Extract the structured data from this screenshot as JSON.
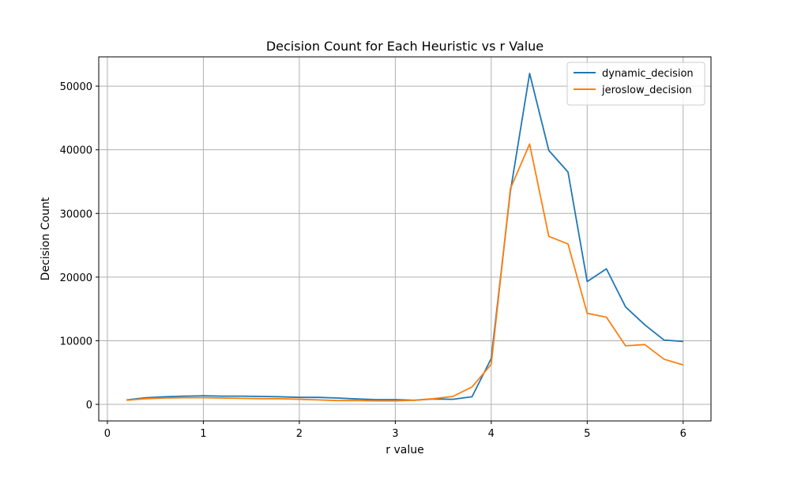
{
  "chart_data": {
    "type": "line",
    "title": "Decision Count for Each Heuristic vs r Value",
    "xlabel": "r value",
    "ylabel": "Decision Count",
    "xlim": [
      -0.09,
      6.29
    ],
    "ylim": [
      -2600,
      54600
    ],
    "x_ticks": [
      0,
      1,
      2,
      3,
      4,
      5,
      6
    ],
    "y_ticks": [
      0,
      10000,
      20000,
      30000,
      40000,
      50000
    ],
    "x_tick_labels": [
      "0",
      "1",
      "2",
      "3",
      "4",
      "5",
      "6"
    ],
    "y_tick_labels": [
      "0",
      "10000",
      "20000",
      "30000",
      "40000",
      "50000"
    ],
    "grid": true,
    "legend_position": "top-right",
    "x": [
      0.2,
      0.4,
      0.6,
      0.8,
      1.0,
      1.2,
      1.4,
      1.6,
      1.8,
      2.0,
      2.2,
      2.4,
      2.6,
      2.8,
      3.0,
      3.2,
      3.4,
      3.6,
      3.8,
      4.0,
      4.2,
      4.4,
      4.6,
      4.8,
      5.0,
      5.2,
      5.4,
      5.6,
      5.8,
      6.0
    ],
    "series": [
      {
        "name": "dynamic_decision",
        "color": "#1f77b4",
        "values": [
          700,
          1050,
          1200,
          1300,
          1350,
          1300,
          1300,
          1250,
          1200,
          1100,
          1100,
          1000,
          850,
          750,
          750,
          650,
          850,
          800,
          1200,
          7200,
          33500,
          52000,
          39900,
          36500,
          19300,
          21300,
          15300,
          12500,
          10100,
          9900
        ]
      },
      {
        "name": "jeroslow_decision",
        "color": "#ff7f0e",
        "values": [
          650,
          900,
          1000,
          1050,
          1050,
          1000,
          950,
          900,
          900,
          800,
          700,
          600,
          600,
          550,
          550,
          650,
          900,
          1250,
          2750,
          6300,
          33900,
          40900,
          26400,
          25200,
          14300,
          13700,
          9200,
          9400,
          7100,
          6200
        ]
      }
    ]
  }
}
